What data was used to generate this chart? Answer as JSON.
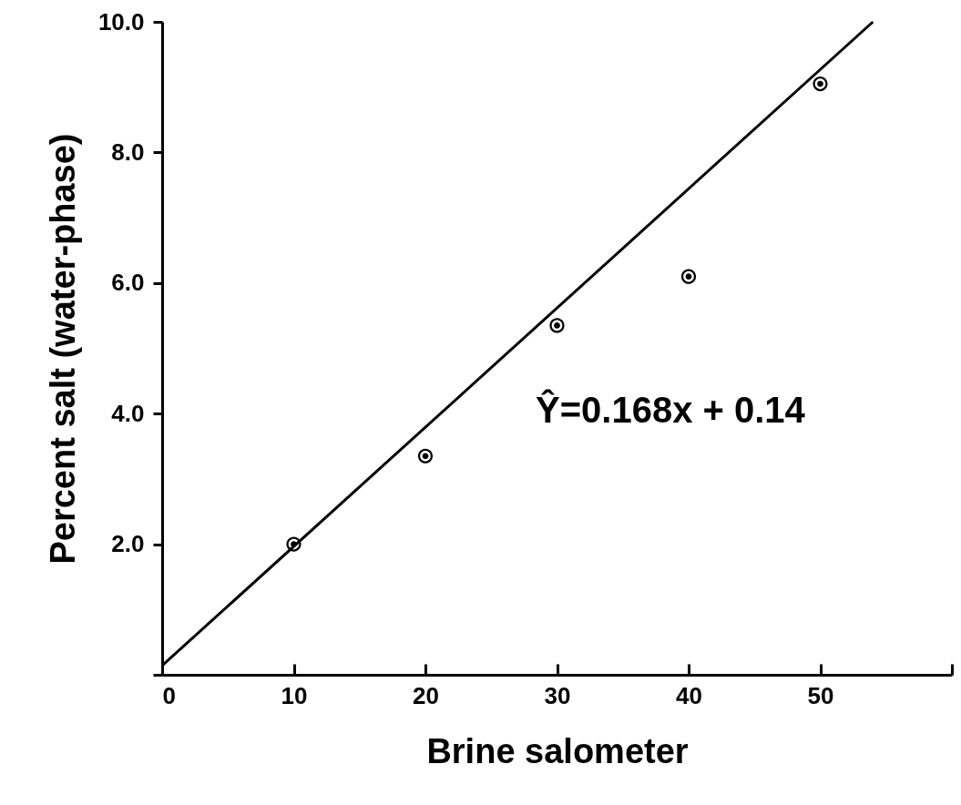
{
  "chart_data": {
    "type": "scatter",
    "xlabel": "Brine salometer",
    "ylabel": "Percent salt (water-phase)",
    "annotations": [
      "Ŷ=0.168x + 0.14"
    ],
    "series": [
      {
        "color": "#000000",
        "marker": "circle",
        "x": [
          10,
          20,
          30,
          40,
          50
        ],
        "values": [
          2.0,
          3.35,
          5.35,
          6.1,
          9.05
        ]
      },
      {
        "type": "line",
        "color": "#000000",
        "x": [
          0,
          54
        ],
        "values": [
          0.14,
          10.0
        ]
      }
    ],
    "xlim": [
      0,
      60
    ],
    "xticks": [
      0,
      10,
      20,
      30,
      40,
      50,
      {
        "value": 60,
        "label": null
      }
    ],
    "ylim": [
      0,
      10
    ],
    "yticks": [
      {
        "value": 0,
        "label": null
      },
      {
        "value": 2,
        "label": "2.0"
      },
      {
        "value": 4,
        "label": "4.0"
      },
      {
        "value": 6,
        "label": "6.0"
      },
      {
        "value": 8,
        "label": "8.0"
      },
      {
        "value": 10,
        "label": "10.0"
      }
    ],
    "line_style": "solid",
    "grid": false
  }
}
